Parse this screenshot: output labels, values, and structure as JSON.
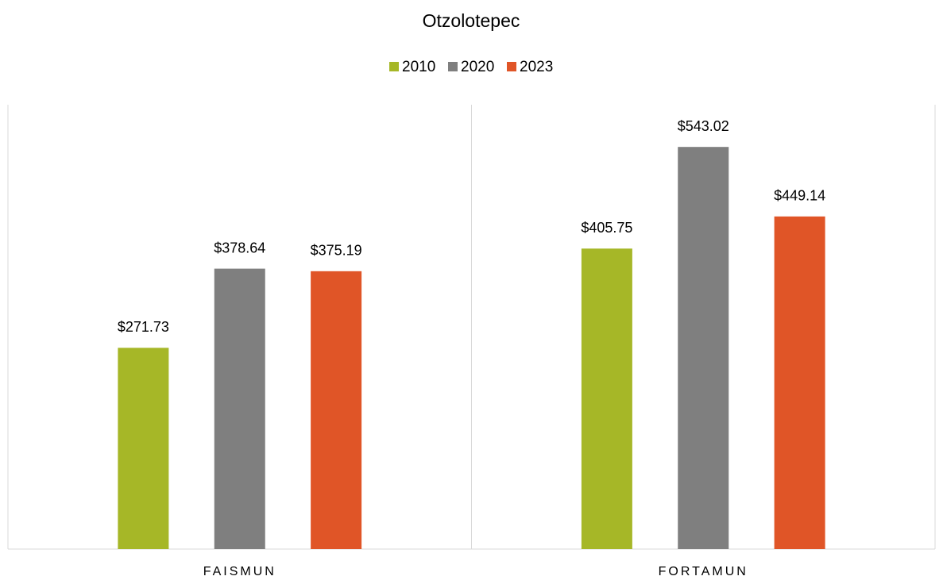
{
  "chart_data": {
    "type": "bar",
    "title": "Otzolotepec",
    "categories": [
      "FAISMUN",
      "FORTAMUN"
    ],
    "series": [
      {
        "name": "2010",
        "color": "#a6b727",
        "values": [
          271.73,
          405.75
        ],
        "value_labels": [
          "$271.73",
          "$405.75"
        ]
      },
      {
        "name": "2020",
        "color": "#7f7f7f",
        "values": [
          378.64,
          543.02
        ],
        "value_labels": [
          "$378.64",
          "$543.02"
        ]
      },
      {
        "name": "2023",
        "color": "#e05527",
        "values": [
          375.19,
          449.14
        ],
        "value_labels": [
          "$375.19",
          "$449.14"
        ]
      }
    ],
    "ylim": [
      0,
      600
    ],
    "legend": "top"
  }
}
